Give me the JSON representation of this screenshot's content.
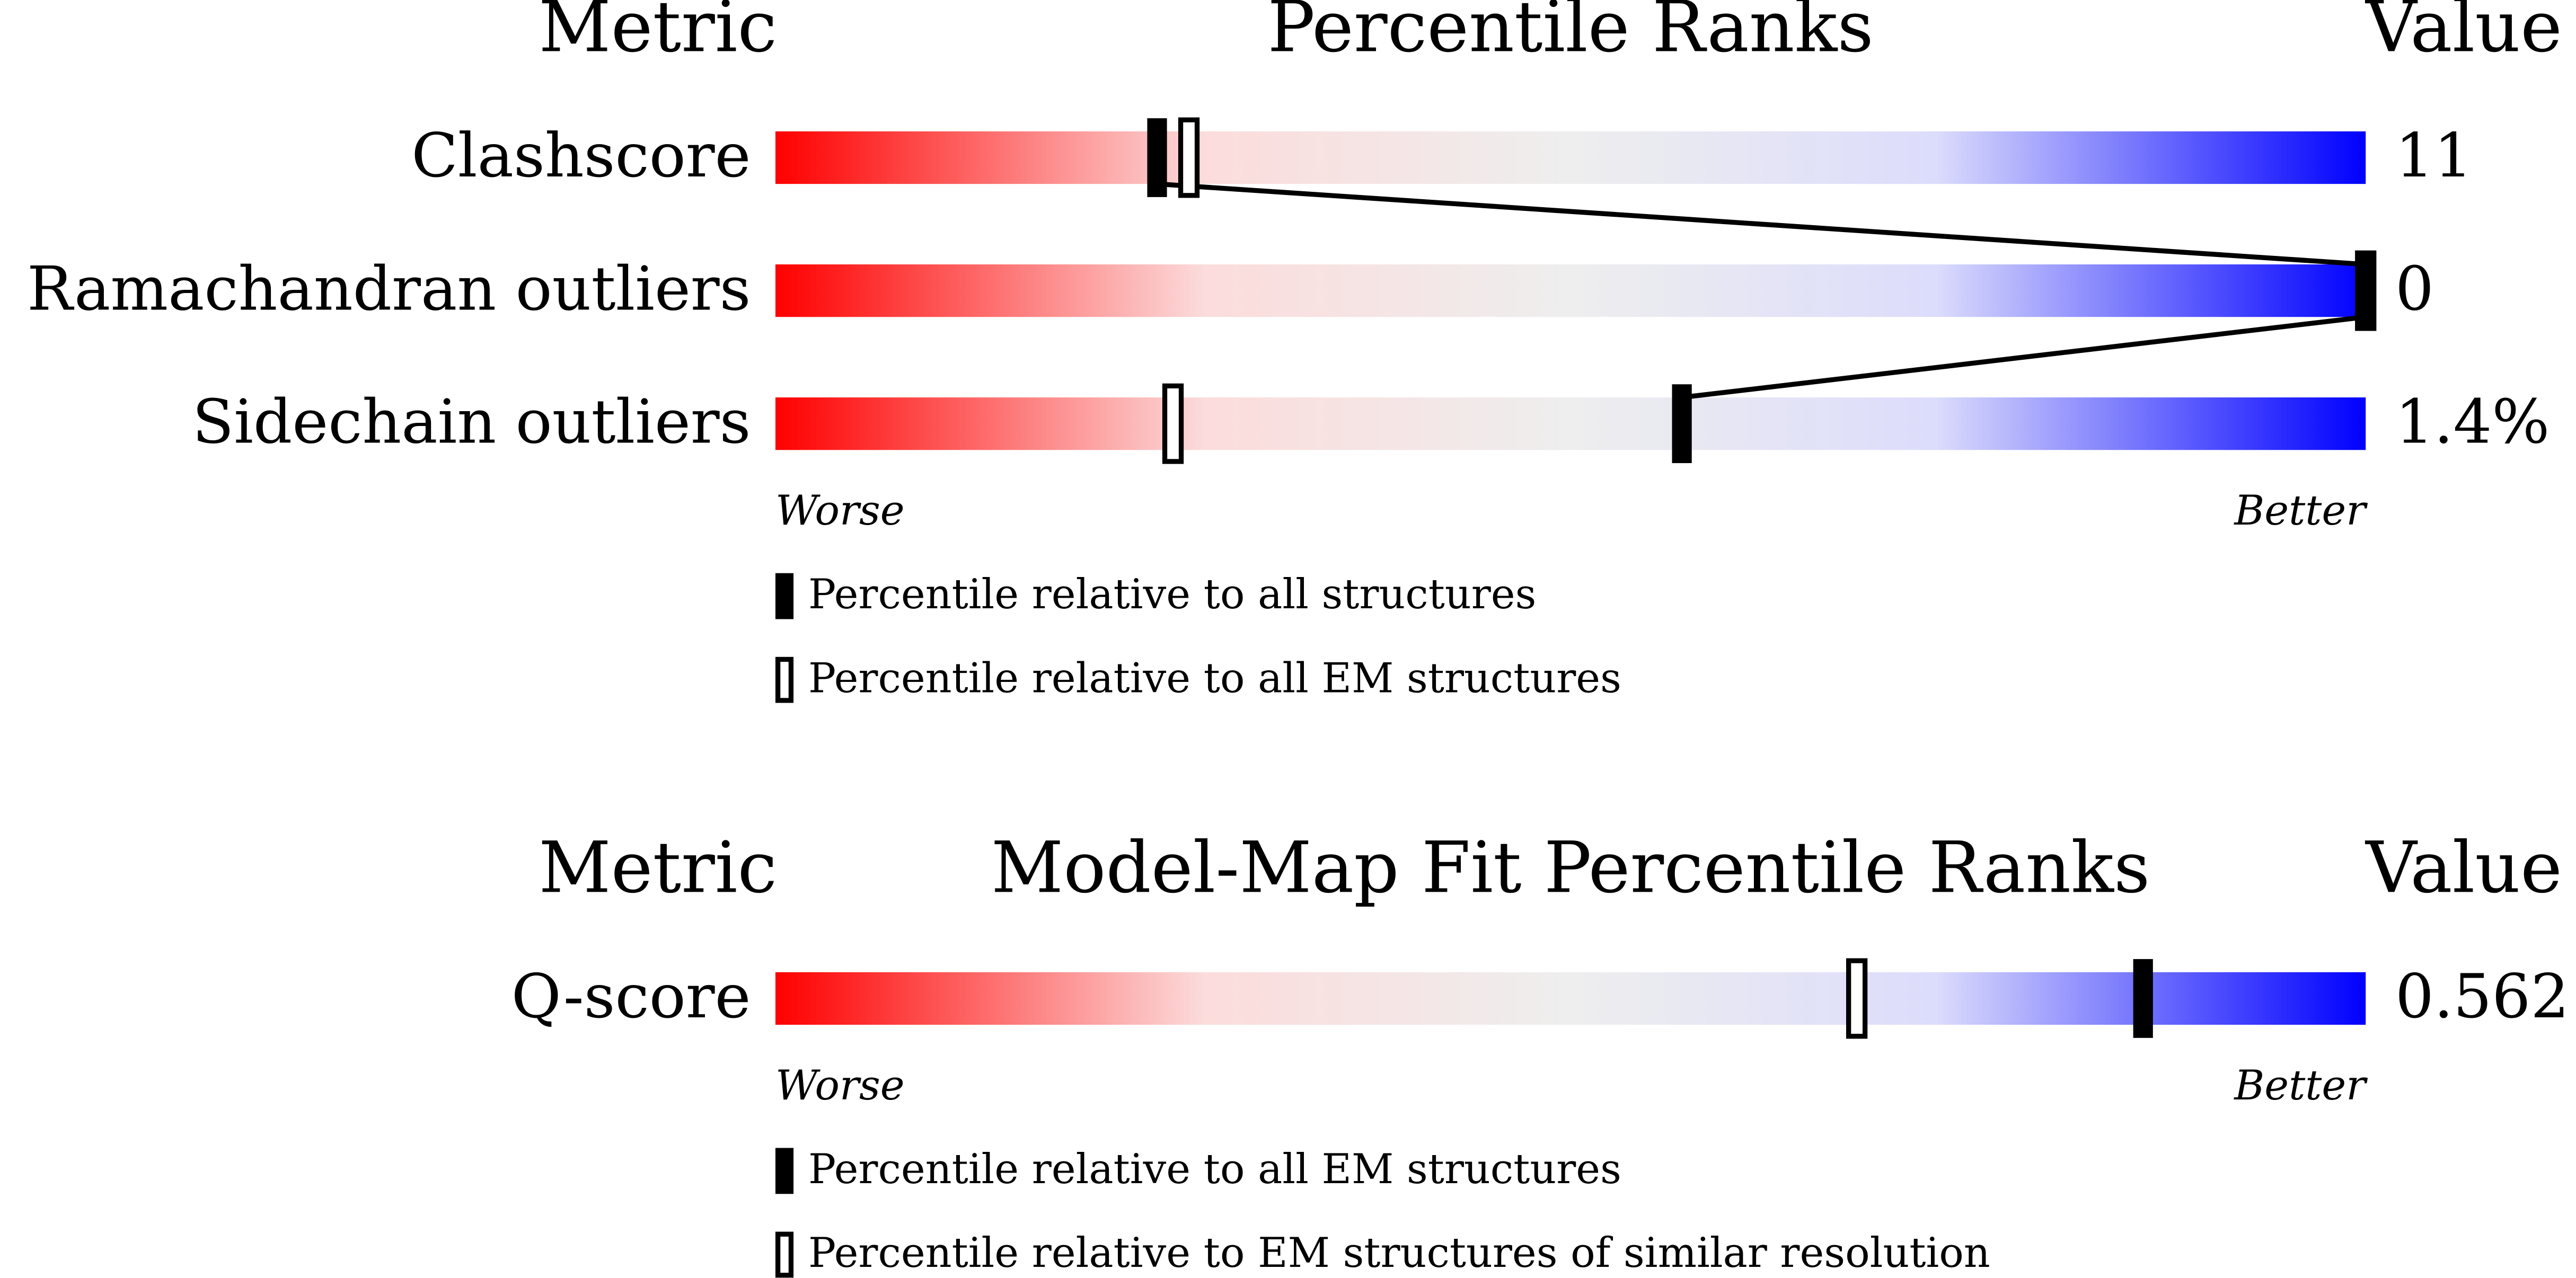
{
  "chart_data": [
    {
      "type": "percentile-slider",
      "metric_header": "Metric",
      "title": "Percentile Ranks",
      "value_header": "Value",
      "categories": [
        "Clashscore",
        "Ramachandran outliers",
        "Sidechain outliers"
      ],
      "metric_values": [
        "11",
        "0",
        "1.4%"
      ],
      "series": [
        {
          "name": "Percentile relative to all structures",
          "style": "filled",
          "color": "#000000",
          "values": [
            24,
            100,
            57
          ]
        },
        {
          "name": "Percentile relative to all EM structures",
          "style": "hollow",
          "color": "#000000",
          "values": [
            26,
            100,
            25
          ]
        }
      ],
      "xlim": [
        0,
        100
      ],
      "worse": "Worse",
      "better": "Better",
      "connect": true,
      "gradient": [
        "#ff0000",
        "#fcdcdc",
        "#eeeeee",
        "#dcdcfc",
        "#0000ff"
      ]
    },
    {
      "type": "percentile-slider",
      "metric_header": "Metric",
      "title": "Model-Map Fit Percentile Ranks",
      "value_header": "Value",
      "categories": [
        "Q-score"
      ],
      "metric_values": [
        "0.562"
      ],
      "series": [
        {
          "name": "Percentile relative to all EM structures",
          "style": "filled",
          "color": "#000000",
          "values": [
            86
          ]
        },
        {
          "name": "Percentile relative to EM structures of similar resolution",
          "style": "hollow",
          "color": "#000000",
          "values": [
            68
          ]
        }
      ],
      "xlim": [
        0,
        100
      ],
      "worse": "Worse",
      "better": "Better",
      "connect": false,
      "gradient": [
        "#ff0000",
        "#fcdcdc",
        "#eeeeee",
        "#dcdcfc",
        "#0000ff"
      ]
    }
  ]
}
